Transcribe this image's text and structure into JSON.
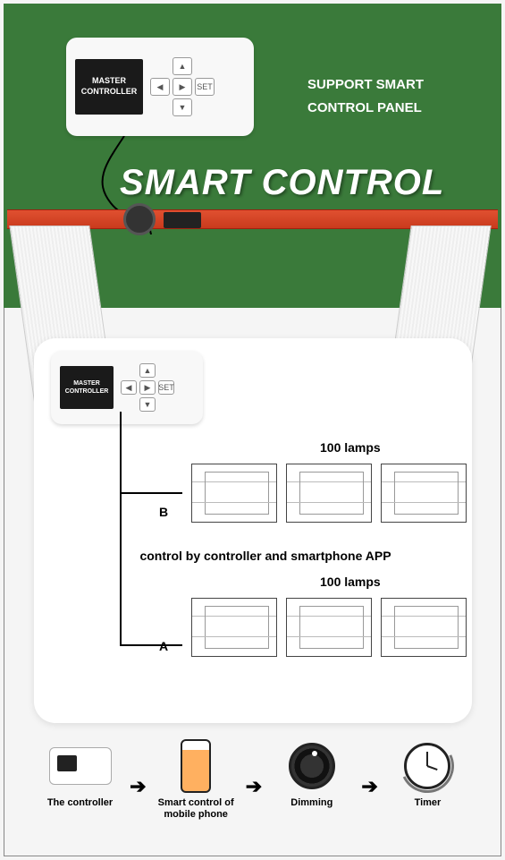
{
  "colors": {
    "green_bg": "#3a7a3a",
    "red_bar": "#c93a1d",
    "title_text": "#ffffff",
    "card_bg": "#ffffff"
  },
  "header": {
    "controller_screen": "MASTER\nCONTROLLER",
    "support_line1": "SUPPORT SMART",
    "support_line2": "CONTROL PANEL",
    "main_title": "SMART CONTROL",
    "set_button": "SET"
  },
  "diagram": {
    "controller_screen": "MASTER\nCONTROLLER",
    "chain_b": {
      "letter": "B",
      "count_label": "100 lamps",
      "lamp_count": 3
    },
    "chain_a": {
      "letter": "A",
      "count_label": "100 lamps",
      "lamp_count": 3
    },
    "caption": "control by controller and smartphone APP",
    "set_button": "SET"
  },
  "bottom_strip": {
    "items": [
      {
        "label": "The controller"
      },
      {
        "label": "Smart control of mobile phone"
      },
      {
        "label": "Dimming"
      },
      {
        "label": "Timer"
      }
    ],
    "dimming_scale": {
      "min": 0,
      "max": 100
    }
  }
}
